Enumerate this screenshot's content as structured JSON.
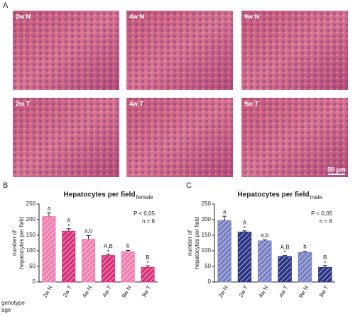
{
  "panel_labels": [
    "A",
    "B",
    "C"
  ],
  "micrographs": [
    "2w N",
    "4w N",
    "9w N",
    "2w T",
    "4w T",
    "9w T"
  ],
  "scale_bar": "50 µm",
  "row_labels": [
    "genotype",
    "age"
  ],
  "chart_data": [
    {
      "type": "bar",
      "title": "Hepatocytes per field",
      "title_subscript": "female",
      "annotations": [
        "P < 0,05",
        "n = 8"
      ],
      "ylabel": [
        "number of",
        "hepatocytes per field"
      ],
      "categories": [
        "2w N",
        "2w T",
        "4w N",
        "4w T",
        "9w N",
        "9w T"
      ],
      "values": [
        210,
        163,
        137,
        85,
        97,
        47
      ],
      "errors": [
        12,
        8,
        12,
        4,
        4,
        5
      ],
      "letters": [
        "a",
        "A",
        "a,b",
        "A,B",
        "b",
        "B"
      ],
      "asterisks": [
        null,
        "*",
        null,
        "*",
        null,
        "*"
      ],
      "colors": [
        "#f07fb0",
        "#d8307a",
        "#f07fb0",
        "#d8307a",
        "#f07fb0",
        "#d8307a"
      ],
      "ylim": [
        0,
        250
      ],
      "yticks": [
        0,
        50,
        100,
        150,
        200,
        250
      ]
    },
    {
      "type": "bar",
      "title": "Hepatocytes per field",
      "title_subscript": "male",
      "annotations": [
        "P < 0,05",
        "n = 8"
      ],
      "ylabel": [
        "number of",
        "hepatocytes per field"
      ],
      "categories": [
        "2w N",
        "2w T",
        "4w N",
        "4w T",
        "9w N",
        "9w T"
      ],
      "values": [
        197,
        160,
        132,
        82,
        95,
        47
      ],
      "errors": [
        14,
        4,
        3,
        3,
        4,
        6
      ],
      "letters": [
        "a",
        "A",
        "a,b",
        "A,B",
        "b",
        "B"
      ],
      "asterisks": [
        null,
        "*",
        null,
        "*",
        null,
        "*"
      ],
      "colors": [
        "#7880c4",
        "#2b3585",
        "#7880c4",
        "#2b3585",
        "#7880c4",
        "#2b3585"
      ],
      "ylim": [
        0,
        250
      ],
      "yticks": [
        0,
        50,
        100,
        150,
        200,
        250
      ]
    }
  ]
}
